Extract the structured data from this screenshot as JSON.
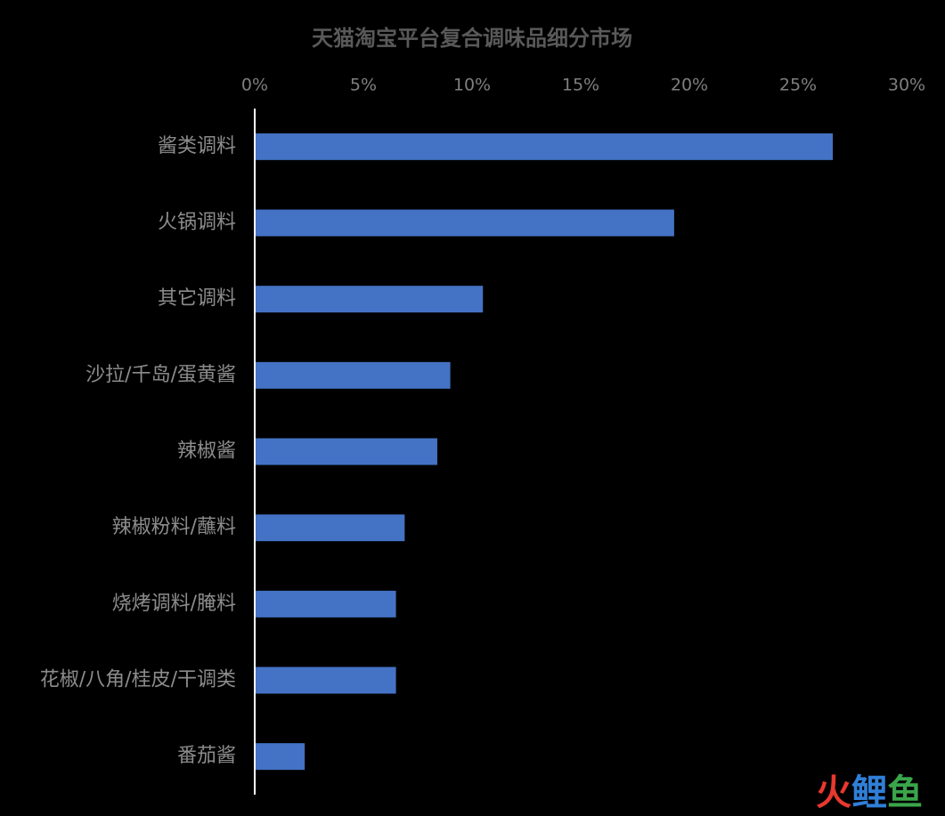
{
  "chart_data": {
    "type": "bar",
    "orientation": "horizontal",
    "title": "天猫淘宝平台复合调味品细分市场",
    "categories": [
      "酱类调料",
      "火锅调料",
      "其它调料",
      "沙拉/千岛/蛋黄酱",
      "辣椒酱",
      "辣椒粉料/蘸料",
      "烧烤调料/腌料",
      "花椒/八角/桂皮/干调类",
      "番茄酱"
    ],
    "values": [
      26.6,
      19.3,
      10.5,
      9.0,
      8.4,
      6.9,
      6.5,
      6.5,
      2.3
    ],
    "color": "#4472c4",
    "xlim": [
      0,
      30
    ],
    "xticks": [
      {
        "value": 0,
        "label": "0%"
      },
      {
        "value": 5,
        "label": "5%"
      },
      {
        "value": 10,
        "label": "10%"
      },
      {
        "value": 15,
        "label": "15%"
      },
      {
        "value": 20,
        "label": "20%"
      },
      {
        "value": 25,
        "label": "25%"
      },
      {
        "value": 30,
        "label": "30%"
      }
    ],
    "grid": false
  },
  "watermark": [
    {
      "text": "火",
      "color": "#e8382f"
    },
    {
      "text": "鲤",
      "color": "#2f7fd8"
    },
    {
      "text": "鱼",
      "color": "#3aa54a"
    }
  ]
}
